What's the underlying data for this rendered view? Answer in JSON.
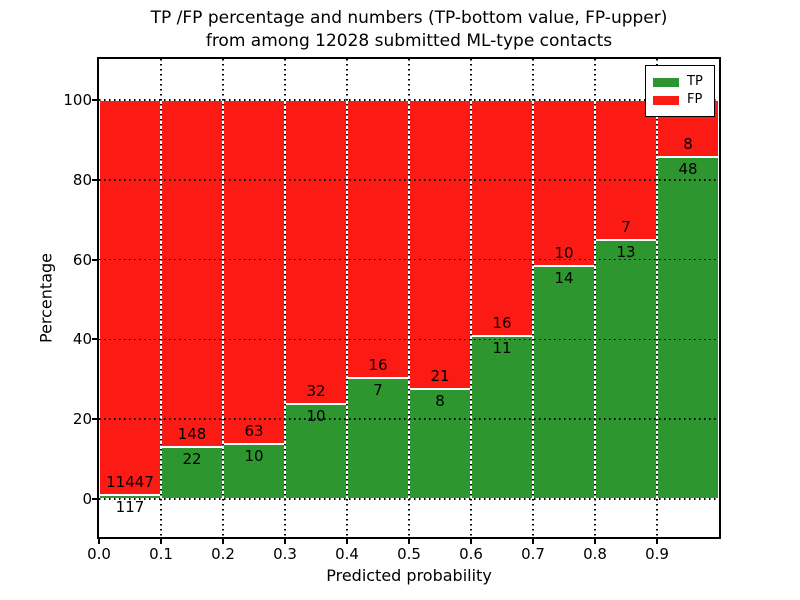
{
  "title": {
    "line1": "TP /FP percentage and numbers (TP-bottom value, FP-upper)",
    "line2": "from among 12028 submitted ML-type contacts"
  },
  "axes": {
    "xlabel": "Predicted probability",
    "ylabel": "Percentage",
    "x_tick_labels": [
      "0.0",
      "0.1",
      "0.2",
      "0.3",
      "0.4",
      "0.5",
      "0.6",
      "0.7",
      "0.8",
      "0.9"
    ],
    "y_tick_labels": [
      "0",
      "20",
      "40",
      "60",
      "80",
      "100"
    ],
    "y_tick_values": [
      0,
      20,
      40,
      60,
      80,
      100
    ]
  },
  "legend": {
    "items": [
      {
        "label": "TP",
        "color": "#2e962e"
      },
      {
        "label": "FP",
        "color": "#fc1a15"
      }
    ]
  },
  "colors": {
    "tp_green": "#2e962e",
    "fp_red": "#fc1a15",
    "bar_edge": "#ffffff",
    "grid": "#000000"
  },
  "chart_data": {
    "type": "bar",
    "stacked": true,
    "title": "TP /FP percentage and numbers (TP-bottom value, FP-upper) from among 12028 submitted ML-type contacts",
    "xlabel": "Predicted probability",
    "ylabel": "Percentage",
    "total_contacts": 12028,
    "bin_starts": [
      0.0,
      0.1,
      0.2,
      0.3,
      0.4,
      0.5,
      0.6,
      0.7,
      0.8,
      0.9
    ],
    "bin_width": 0.1,
    "series": [
      {
        "name": "TP",
        "color": "#2e962e",
        "counts": [
          117,
          22,
          10,
          10,
          7,
          8,
          11,
          14,
          13,
          48
        ],
        "percent": [
          1.01,
          12.94,
          13.7,
          23.81,
          30.43,
          27.59,
          40.74,
          58.33,
          65.0,
          85.71
        ]
      },
      {
        "name": "FP",
        "color": "#fc1a15",
        "counts": [
          11447,
          148,
          63,
          32,
          16,
          21,
          16,
          10,
          7,
          8
        ],
        "percent": [
          98.99,
          87.06,
          86.3,
          76.19,
          69.57,
          72.41,
          59.26,
          41.67,
          35.0,
          14.29
        ]
      }
    ],
    "ylim": [
      -9.5,
      110
    ],
    "xlim": [
      0,
      1
    ],
    "grid": true,
    "grid_style": "dotted",
    "legend_position": "upper right",
    "label_note": "TP count printed below green top edge, FP count printed above green top edge"
  }
}
